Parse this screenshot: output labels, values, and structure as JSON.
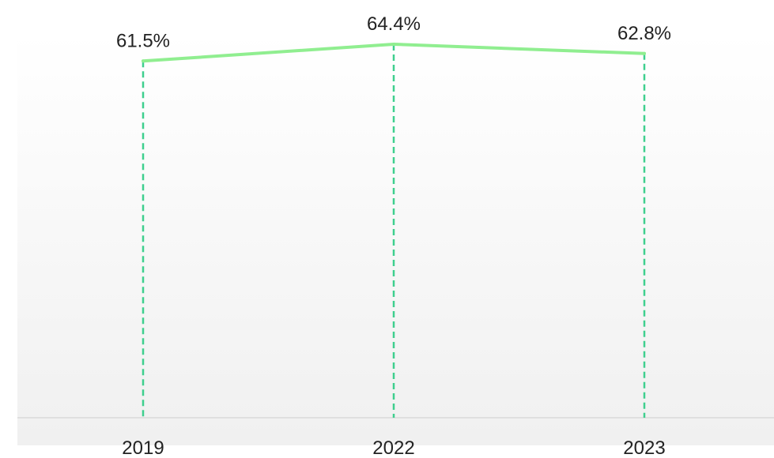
{
  "chart_data": {
    "type": "line",
    "categories": [
      "2019",
      "2022",
      "2023"
    ],
    "series": [
      {
        "values": [
          61.5,
          64.4,
          62.8
        ],
        "labels": [
          "61.5%",
          "64.4%",
          "62.8%"
        ],
        "color": "#90ee90"
      }
    ],
    "drop_line_color": "#3ecf8e",
    "plot_background_top": "#ffffff",
    "plot_background_bottom": "#f0f0f0",
    "axis_color": "#d9d9d9",
    "ylim": [
      0,
      64.4
    ],
    "grid": false,
    "legend": "none"
  }
}
